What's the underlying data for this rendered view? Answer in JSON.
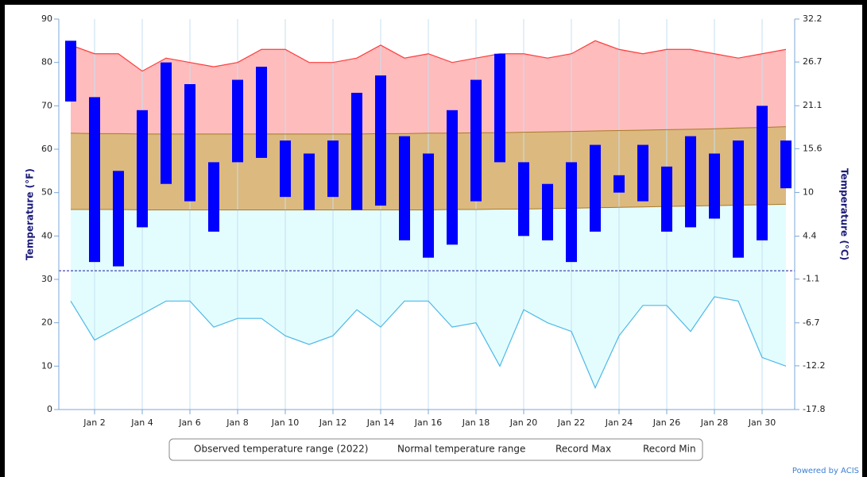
{
  "chart_data": {
    "type": "combo",
    "categories": [
      null,
      "Jan 2",
      null,
      "Jan 4",
      null,
      "Jan 6",
      null,
      "Jan 8",
      null,
      "Jan 10",
      null,
      "Jan 12",
      null,
      "Jan 14",
      null,
      "Jan 16",
      null,
      "Jan 18",
      null,
      "Jan 20",
      null,
      "Jan 22",
      null,
      "Jan 24",
      null,
      "Jan 26",
      null,
      "Jan 28",
      null,
      "Jan 30",
      null
    ],
    "series": [
      {
        "name": "Observed temperature range (2022)",
        "type": "range-bar",
        "color": "#0000ff",
        "low": [
          71,
          34,
          33,
          42,
          52,
          48,
          41,
          57,
          58,
          49,
          46,
          49,
          46,
          47,
          39,
          35,
          38,
          48,
          57,
          40,
          39,
          34,
          41,
          50,
          48,
          41,
          42,
          44,
          35,
          39,
          51
        ],
        "high": [
          85,
          72,
          55,
          69,
          80,
          75,
          57,
          76,
          79,
          62,
          59,
          62,
          73,
          77,
          63,
          59,
          69,
          76,
          82,
          57,
          52,
          57,
          61,
          54,
          61,
          56,
          63,
          59,
          62,
          70,
          62
        ]
      },
      {
        "name": "Normal temperature range",
        "type": "range-area",
        "color": "#b8860b",
        "low": [
          46.1,
          46.1,
          46.1,
          46.0,
          46.0,
          46.0,
          46.0,
          46.0,
          46.0,
          46.0,
          46.0,
          46.0,
          46.0,
          46.0,
          46.0,
          46.0,
          46.1,
          46.1,
          46.2,
          46.2,
          46.3,
          46.4,
          46.5,
          46.6,
          46.7,
          46.8,
          46.9,
          47.0,
          47.1,
          47.2,
          47.3
        ],
        "high": [
          63.7,
          63.6,
          63.6,
          63.5,
          63.5,
          63.5,
          63.5,
          63.5,
          63.5,
          63.5,
          63.5,
          63.5,
          63.5,
          63.6,
          63.6,
          63.7,
          63.7,
          63.8,
          63.8,
          63.9,
          64.0,
          64.1,
          64.2,
          64.3,
          64.4,
          64.5,
          64.6,
          64.7,
          64.9,
          65.0,
          65.2
        ]
      },
      {
        "name": "Record Max",
        "type": "line",
        "color": "#ff3b3b",
        "values": [
          84,
          82,
          82,
          78,
          81,
          80,
          79,
          80,
          83,
          83,
          80,
          80,
          81,
          84,
          81,
          82,
          80,
          81,
          82,
          82,
          81,
          82,
          85,
          83,
          82,
          83,
          83,
          82,
          81,
          82,
          83
        ]
      },
      {
        "name": "Record Min",
        "type": "line",
        "color": "#4fb8e8",
        "values": [
          25,
          16,
          19,
          22,
          25,
          25,
          19,
          21,
          21,
          17,
          15,
          17,
          23,
          19,
          25,
          25,
          19,
          20,
          10,
          23,
          20,
          18,
          5,
          17,
          24,
          24,
          18,
          26,
          25,
          12,
          10
        ]
      }
    ],
    "ylim": [
      0,
      90
    ],
    "yticks": [
      0,
      10,
      20,
      30,
      40,
      50,
      60,
      70,
      80,
      90
    ],
    "y2lim": [
      -17.8,
      32.2
    ],
    "y2ticks": [
      -17.8,
      -12.2,
      -6.7,
      -1.1,
      4.4,
      10,
      15.6,
      21.1,
      26.7,
      32.2
    ],
    "y_label": "Temperature (°F)",
    "y2_label": "Temperature (°C)",
    "threshold": 32,
    "footer": "Powered by ACIS"
  }
}
